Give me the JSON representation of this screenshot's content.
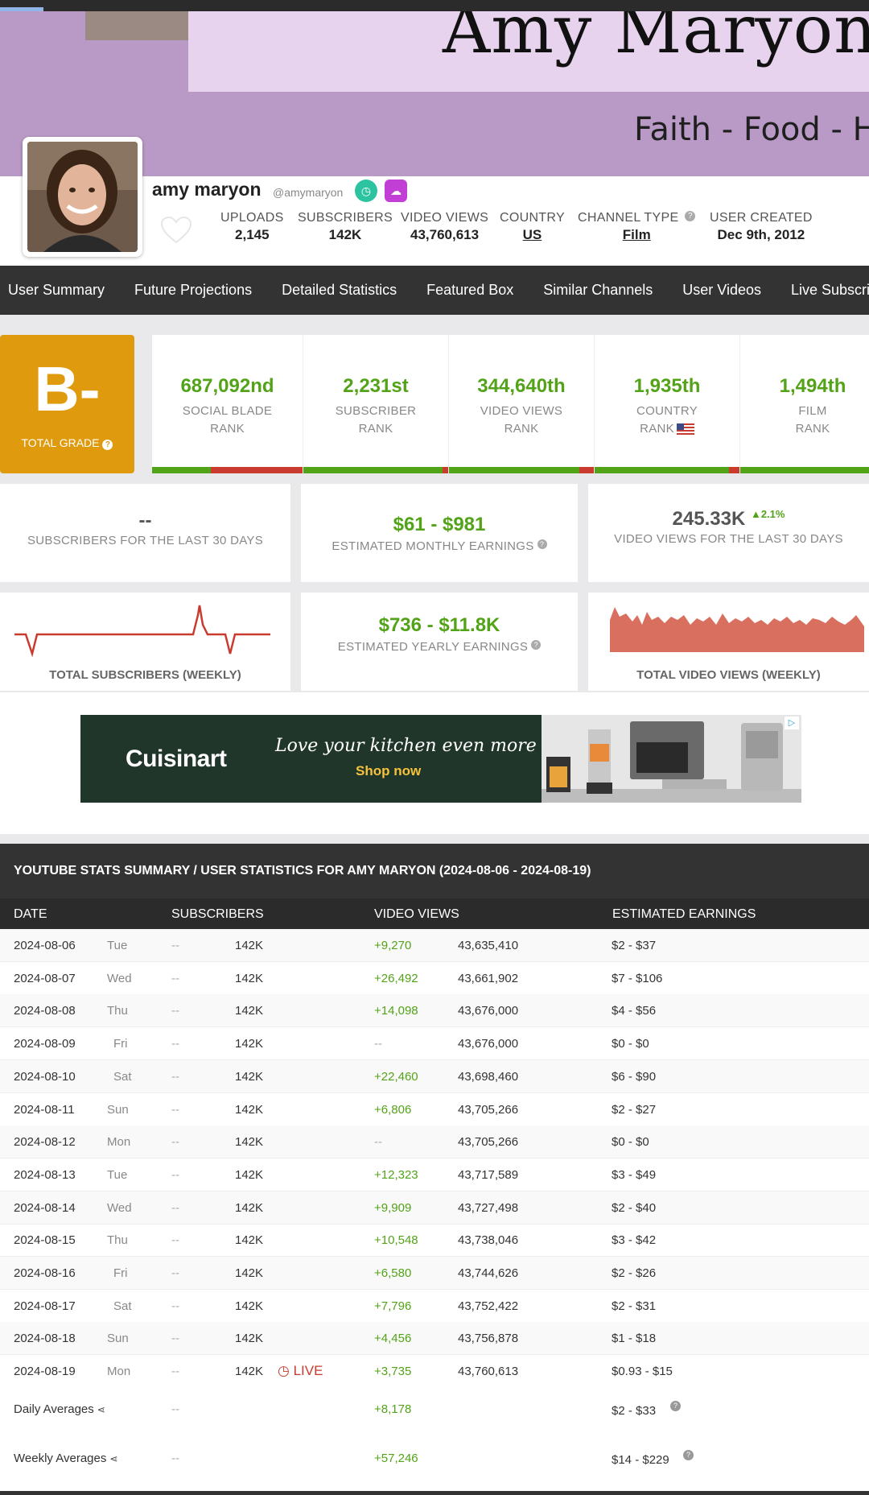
{
  "banner": {
    "name": "Amy Maryon",
    "tagline": "Faith - Food - H"
  },
  "profile": {
    "name": "amy maryon",
    "handle": "@amymaryon",
    "stats": [
      {
        "label": "UPLOADS",
        "value": "2,145"
      },
      {
        "label": "SUBSCRIBERS",
        "value": "142K"
      },
      {
        "label": "VIDEO VIEWS",
        "value": "43,760,613"
      },
      {
        "label": "COUNTRY",
        "value": "US"
      },
      {
        "label": "CHANNEL TYPE",
        "value": "Film"
      },
      {
        "label": "USER CREATED",
        "value": "Dec 9th, 2012"
      }
    ]
  },
  "nav": [
    "User Summary",
    "Future Projections",
    "Detailed Statistics",
    "Featured Box",
    "Similar Channels",
    "User Videos",
    "Live Subscrib"
  ],
  "grade": {
    "value": "B-",
    "label": "TOTAL GRADE"
  },
  "ranks": [
    {
      "value": "687,092nd",
      "line1": "SOCIAL BLADE",
      "line2": "RANK",
      "red_fraction": 0.61
    },
    {
      "value": "2,231st",
      "line1": "SUBSCRIBER",
      "line2": "RANK",
      "red_fraction": 0.04
    },
    {
      "value": "344,640th",
      "line1": "VIDEO VIEWS",
      "line2": "RANK",
      "red_fraction": 0.1
    },
    {
      "value": "1,935th",
      "line1": "COUNTRY",
      "line2": "RANK",
      "red_fraction": 0.07
    },
    {
      "value": "1,494th",
      "line1": "FILM",
      "line2": "RANK",
      "red_fraction": 0.0
    }
  ],
  "cards": {
    "subs30": {
      "value": "--",
      "label": "SUBSCRIBERS FOR THE LAST 30 DAYS"
    },
    "monthly": {
      "value": "$61  -  $981",
      "label": "ESTIMATED MONTHLY EARNINGS"
    },
    "views30": {
      "value": "245.33K",
      "change": "2.1%",
      "label": "VIDEO VIEWS FOR THE LAST 30 DAYS"
    },
    "yearly": {
      "value": "$736  -  $11.8K",
      "label": "ESTIMATED YEARLY EARNINGS"
    },
    "subs_weekly_label": "TOTAL SUBSCRIBERS (WEEKLY)",
    "views_weekly_label": "TOTAL VIDEO VIEWS (WEEKLY)"
  },
  "ad": {
    "brand": "Cuisinart",
    "tagline": "Love your kitchen even more",
    "cta": "Shop now"
  },
  "table": {
    "title": "YOUTUBE STATS SUMMARY / USER STATISTICS FOR AMY MARYON (2024-08-06 - 2024-08-19)",
    "columns": [
      "DATE",
      "SUBSCRIBERS",
      "VIDEO VIEWS",
      "ESTIMATED EARNINGS"
    ],
    "rows": [
      {
        "date": "2024-08-06",
        "day": "Tue",
        "sub_change": "--",
        "subs": "142K",
        "view_change": "+9,270",
        "views": "43,635,410",
        "earnings": "$2  -  $37"
      },
      {
        "date": "2024-08-07",
        "day": "Wed",
        "sub_change": "--",
        "subs": "142K",
        "view_change": "+26,492",
        "views": "43,661,902",
        "earnings": "$7  -  $106"
      },
      {
        "date": "2024-08-08",
        "day": "Thu",
        "sub_change": "--",
        "subs": "142K",
        "view_change": "+14,098",
        "views": "43,676,000",
        "earnings": "$4  -  $56"
      },
      {
        "date": "2024-08-09",
        "day": "Fri",
        "sub_change": "--",
        "subs": "142K",
        "view_change": "--",
        "views": "43,676,000",
        "earnings": "$0  -  $0"
      },
      {
        "date": "2024-08-10",
        "day": "Sat",
        "sub_change": "--",
        "subs": "142K",
        "view_change": "+22,460",
        "views": "43,698,460",
        "earnings": "$6  -  $90"
      },
      {
        "date": "2024-08-11",
        "day": "Sun",
        "sub_change": "--",
        "subs": "142K",
        "view_change": "+6,806",
        "views": "43,705,266",
        "earnings": "$2  -  $27"
      },
      {
        "date": "2024-08-12",
        "day": "Mon",
        "sub_change": "--",
        "subs": "142K",
        "view_change": "--",
        "views": "43,705,266",
        "earnings": "$0  -  $0"
      },
      {
        "date": "2024-08-13",
        "day": "Tue",
        "sub_change": "--",
        "subs": "142K",
        "view_change": "+12,323",
        "views": "43,717,589",
        "earnings": "$3  -  $49"
      },
      {
        "date": "2024-08-14",
        "day": "Wed",
        "sub_change": "--",
        "subs": "142K",
        "view_change": "+9,909",
        "views": "43,727,498",
        "earnings": "$2  -  $40"
      },
      {
        "date": "2024-08-15",
        "day": "Thu",
        "sub_change": "--",
        "subs": "142K",
        "view_change": "+10,548",
        "views": "43,738,046",
        "earnings": "$3  -  $42"
      },
      {
        "date": "2024-08-16",
        "day": "Fri",
        "sub_change": "--",
        "subs": "142K",
        "view_change": "+6,580",
        "views": "43,744,626",
        "earnings": "$2  -  $26"
      },
      {
        "date": "2024-08-17",
        "day": "Sat",
        "sub_change": "--",
        "subs": "142K",
        "view_change": "+7,796",
        "views": "43,752,422",
        "earnings": "$2  -  $31"
      },
      {
        "date": "2024-08-18",
        "day": "Sun",
        "sub_change": "--",
        "subs": "142K",
        "view_change": "+4,456",
        "views": "43,756,878",
        "earnings": "$1  -  $18"
      },
      {
        "date": "2024-08-19",
        "day": "Mon",
        "sub_change": "--",
        "subs": "142K",
        "view_change": "+3,735",
        "views": "43,760,613",
        "earnings": "$0.93  -  $15",
        "live": "LIVE"
      }
    ],
    "daily": {
      "label": "Daily Averages",
      "sub_change": "--",
      "view_change": "+8,178",
      "earnings": "$2  -  $33"
    },
    "weekly": {
      "label": "Weekly Averages",
      "sub_change": "--",
      "view_change": "+57,246",
      "earnings": "$14  -  $229"
    }
  }
}
